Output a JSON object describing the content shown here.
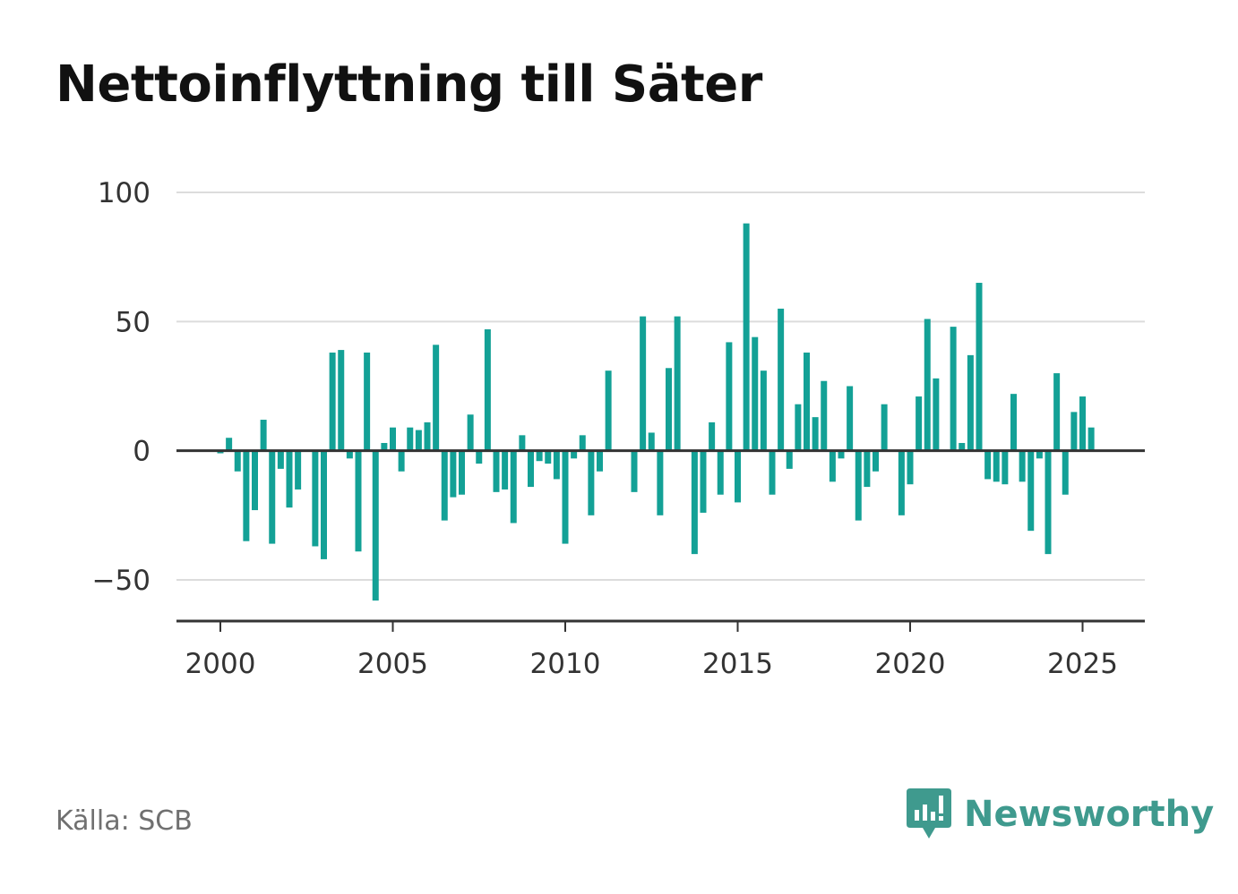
{
  "chart_data": {
    "type": "bar",
    "title": "Nettoinflyttning till Säter",
    "xlabel": "",
    "ylabel": "",
    "x_ticks": [
      "2000",
      "2005",
      "2010",
      "2015",
      "2020",
      "2025"
    ],
    "y_ticks": [
      {
        "value": 100,
        "label": "100"
      },
      {
        "value": 50,
        "label": "50"
      },
      {
        "value": 0,
        "label": "0"
      },
      {
        "value": -50,
        "label": "−50"
      }
    ],
    "ylim": [
      -67,
      100
    ],
    "xlim": [
      1998.7,
      2026.8
    ],
    "grid": true,
    "legend": "none",
    "bar_color": "#13a196",
    "series": [
      {
        "x": [
          2000.0,
          2000.25,
          2000.5,
          2000.75,
          2001.0,
          2001.25,
          2001.5,
          2001.75,
          2002.0,
          2002.25,
          2002.5,
          2002.75,
          2003.0,
          2003.25,
          2003.5,
          2003.75,
          2004.0,
          2004.25,
          2004.5,
          2004.75,
          2005.0,
          2005.25,
          2005.5,
          2005.75,
          2006.0,
          2006.25,
          2006.5,
          2006.75,
          2007.0,
          2007.25,
          2007.5,
          2007.75,
          2008.0,
          2008.25,
          2008.5,
          2008.75,
          2009.0,
          2009.25,
          2009.5,
          2009.75,
          2010.0,
          2010.25,
          2010.5,
          2010.75,
          2011.0,
          2011.25,
          2011.5,
          2011.75,
          2012.0,
          2012.25,
          2012.5,
          2012.75,
          2013.0,
          2013.25,
          2013.5,
          2013.75,
          2014.0,
          2014.25,
          2014.5,
          2014.75,
          2015.0,
          2015.25,
          2015.5,
          2015.75,
          2016.0,
          2016.25,
          2016.5,
          2016.75,
          2017.0,
          2017.25,
          2017.5,
          2017.75,
          2018.0,
          2018.25,
          2018.5,
          2018.75,
          2019.0,
          2019.25,
          2019.5,
          2019.75,
          2020.0,
          2020.25,
          2020.5,
          2020.75,
          2021.0,
          2021.25,
          2021.5,
          2021.75,
          2022.0,
          2022.25,
          2022.5,
          2022.75,
          2023.0,
          2023.25,
          2023.5,
          2023.75,
          2024.0,
          2024.25,
          2024.5,
          2024.75,
          2025.0,
          2025.25
        ],
        "values": [
          -1,
          5,
          -8,
          -35,
          -23,
          12,
          -36,
          -7,
          -22,
          -15,
          0,
          -37,
          -42,
          38,
          39,
          -3,
          -39,
          38,
          -58,
          3,
          9,
          -8,
          9,
          8,
          11,
          41,
          -27,
          -18,
          -17,
          14,
          -5,
          47,
          -16,
          -15,
          -28,
          6,
          -14,
          -4,
          -5,
          -11,
          -36,
          -3,
          6,
          -25,
          -8,
          31,
          0,
          0,
          -16,
          52,
          7,
          -25,
          32,
          52,
          0,
          -40,
          -24,
          11,
          -17,
          42,
          -20,
          88,
          44,
          31,
          -17,
          55,
          -7,
          18,
          38,
          13,
          27,
          -12,
          -3,
          25,
          -27,
          -14,
          -8,
          18,
          0,
          -25,
          -13,
          21,
          51,
          28,
          0,
          48,
          3,
          37,
          65,
          -11,
          -12,
          -13,
          22,
          -12,
          -31,
          -3,
          -40,
          30,
          -17,
          15,
          21,
          9
        ]
      }
    ]
  },
  "footer": {
    "source": "Källa: SCB",
    "brand": "Newsworthy",
    "brand_icon": "newsworthy-logo-icon"
  }
}
